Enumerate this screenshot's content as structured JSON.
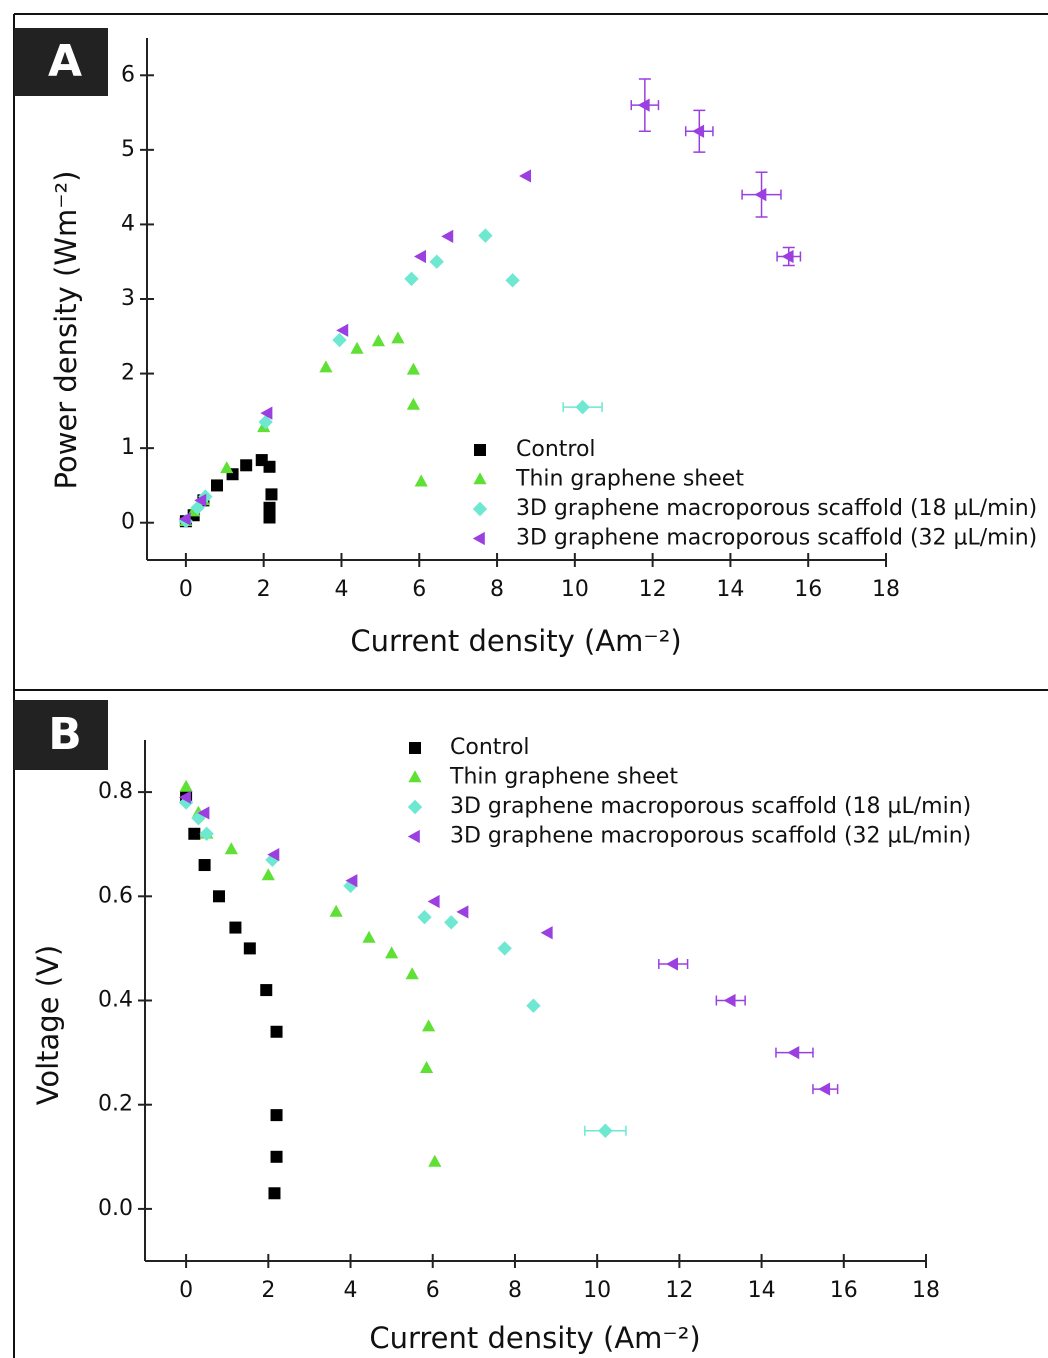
{
  "chart_data": [
    {
      "type": "scatter",
      "panel_label": "A",
      "x_label": "Current density (Am⁻²)",
      "y_label": "Power density (Wm⁻²)",
      "xlim": [
        -1,
        18
      ],
      "ylim": [
        -0.5,
        6.5
      ],
      "xticks": [
        0,
        2,
        4,
        6,
        8,
        10,
        12,
        14,
        16,
        18
      ],
      "yticks": [
        0,
        1,
        2,
        3,
        4,
        5,
        6
      ],
      "legend": "lower right",
      "series": [
        {
          "name": "Control",
          "color": "#000000",
          "marker": "square",
          "x": [
            0,
            0.2,
            0.45,
            0.8,
            1.2,
            1.55,
            1.95,
            2.15,
            2.2,
            2.15,
            2.15
          ],
          "values": [
            0.02,
            0.1,
            0.3,
            0.5,
            0.65,
            0.77,
            0.84,
            0.75,
            0.38,
            0.2,
            0.07
          ]
        },
        {
          "name": "Thin graphene sheet",
          "color": "#5fe034",
          "marker": "triangle-up",
          "x": [
            0,
            0.2,
            0.45,
            1.05,
            2.0,
            3.6,
            4.4,
            4.95,
            5.45,
            5.85,
            5.85,
            6.05
          ],
          "values": [
            0.02,
            0.15,
            0.3,
            0.73,
            1.28,
            2.08,
            2.33,
            2.43,
            2.47,
            2.05,
            1.58,
            0.55
          ]
        },
        {
          "name": "3D graphene macroporous scaffold (18 µL/min)",
          "color": "#6fe8d2",
          "marker": "diamond",
          "x": [
            0,
            0.3,
            0.5,
            2.05,
            3.95,
            5.8,
            6.45,
            7.7,
            8.4,
            10.2
          ],
          "values": [
            0.02,
            0.2,
            0.35,
            1.35,
            2.45,
            3.27,
            3.5,
            3.85,
            3.25,
            1.55
          ],
          "xerr": [
            null,
            null,
            null,
            null,
            null,
            null,
            null,
            null,
            null,
            0.5
          ],
          "yerr": [
            null,
            null,
            null,
            null,
            null,
            null,
            null,
            null,
            null,
            null
          ]
        },
        {
          "name": "3D graphene macroporous scaffold (32 µL/min)",
          "color": "#9b3fe0",
          "marker": "triangle-left",
          "x": [
            0,
            0.4,
            2.1,
            4.05,
            6.05,
            6.75,
            8.75,
            11.8,
            13.2,
            14.8,
            15.5
          ],
          "values": [
            0.05,
            0.3,
            1.47,
            2.58,
            3.57,
            3.84,
            4.65,
            5.6,
            5.25,
            4.4,
            3.57
          ],
          "xerr": [
            null,
            null,
            null,
            null,
            null,
            null,
            null,
            0.35,
            0.35,
            0.5,
            0.3
          ],
          "yerr": [
            null,
            null,
            null,
            null,
            null,
            null,
            null,
            0.35,
            0.28,
            0.3,
            0.12
          ]
        }
      ]
    },
    {
      "type": "scatter",
      "panel_label": "B",
      "x_label": "Current density (Am⁻²)",
      "y_label": "Voltage (V)",
      "xlim": [
        -1,
        18
      ],
      "ylim": [
        -0.1,
        0.9
      ],
      "xticks": [
        0,
        2,
        4,
        6,
        8,
        10,
        12,
        14,
        16,
        18
      ],
      "yticks": [
        {
          "value": 0,
          "label": "0.0"
        },
        0.2,
        0.4,
        0.6,
        0.8
      ],
      "legend": "upper center",
      "series": [
        {
          "name": "Control",
          "color": "#000000",
          "marker": "square",
          "x": [
            0,
            0.2,
            0.45,
            0.8,
            1.2,
            1.55,
            1.95,
            2.2,
            2.2,
            2.2,
            2.15
          ],
          "values": [
            0.79,
            0.72,
            0.66,
            0.6,
            0.54,
            0.5,
            0.42,
            0.34,
            0.18,
            0.1,
            0.03
          ]
        },
        {
          "name": "Thin graphene sheet",
          "color": "#5fe034",
          "marker": "triangle-up",
          "x": [
            0,
            0.3,
            0.5,
            1.1,
            2.0,
            3.65,
            4.45,
            5.0,
            5.5,
            5.9,
            5.85,
            6.05
          ],
          "values": [
            0.81,
            0.76,
            0.72,
            0.69,
            0.64,
            0.57,
            0.52,
            0.49,
            0.45,
            0.35,
            0.27,
            0.09
          ]
        },
        {
          "name": "3D graphene macroporous scaffold (18 µL/min)",
          "color": "#6fe8d2",
          "marker": "diamond",
          "x": [
            0,
            0.3,
            0.5,
            2.1,
            4.0,
            5.8,
            6.45,
            7.75,
            8.45,
            10.2
          ],
          "values": [
            0.78,
            0.75,
            0.72,
            0.67,
            0.62,
            0.56,
            0.55,
            0.5,
            0.39,
            0.15
          ],
          "xerr": [
            null,
            null,
            null,
            null,
            null,
            null,
            null,
            null,
            null,
            0.5
          ]
        },
        {
          "name": "3D graphene macroporous scaffold (32 µL/min)",
          "color": "#9b3fe0",
          "marker": "triangle-left",
          "x": [
            0,
            0.45,
            2.15,
            4.05,
            6.05,
            6.75,
            8.8,
            11.85,
            13.25,
            14.8,
            15.55
          ],
          "values": [
            0.79,
            0.76,
            0.68,
            0.63,
            0.59,
            0.57,
            0.53,
            0.47,
            0.4,
            0.3,
            0.23
          ],
          "xerr": [
            null,
            null,
            null,
            null,
            null,
            null,
            null,
            0.35,
            0.35,
            0.45,
            0.3
          ]
        }
      ]
    }
  ]
}
